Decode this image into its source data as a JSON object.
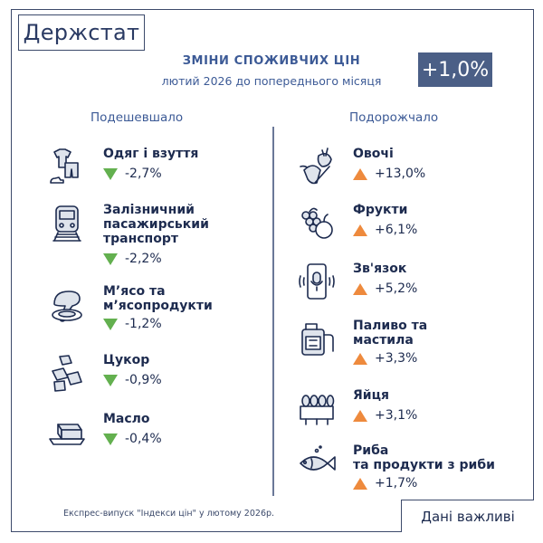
{
  "logo": "Держстат",
  "title": "ЗМІНИ СПОЖИВЧИХ ЦІН",
  "subtitle": "лютий 2026 до попереднього місяця",
  "total": "+1,0%",
  "left_heading": "Подешевшало",
  "right_heading": "Подорожчало",
  "cheaper": [
    {
      "name_lines": [
        "Одяг і взуття"
      ],
      "value": "-2,7%",
      "icon": "clothing-icon"
    },
    {
      "name_lines": [
        "Залізничний",
        "пасажирський",
        "транспорт"
      ],
      "value": "-2,2%",
      "icon": "train-icon"
    },
    {
      "name_lines": [
        "М’ясо та",
        "м’ясопродукти"
      ],
      "value": "-1,2%",
      "icon": "meat-icon"
    },
    {
      "name_lines": [
        "Цукор"
      ],
      "value": "-0,9%",
      "icon": "sugar-cubes-icon"
    },
    {
      "name_lines": [
        "Масло"
      ],
      "value": "-0,4%",
      "icon": "butter-icon"
    }
  ],
  "pricier": [
    {
      "name_lines": [
        "Овочі"
      ],
      "value": "+13,0%",
      "icon": "vegetables-icon"
    },
    {
      "name_lines": [
        "Фрукти"
      ],
      "value": "+6,1%",
      "icon": "fruit-icon"
    },
    {
      "name_lines": [
        "Зв'язок"
      ],
      "value": "+5,2%",
      "icon": "phone-icon"
    },
    {
      "name_lines": [
        "Паливо та",
        "мастила"
      ],
      "value": "+3,3%",
      "icon": "fuel-can-icon"
    },
    {
      "name_lines": [
        "Яйця"
      ],
      "value": "+3,1%",
      "icon": "eggs-icon"
    },
    {
      "name_lines": [
        "Риба",
        "та продукти з риби"
      ],
      "value": "+1,7%",
      "icon": "fish-icon"
    }
  ],
  "footnote": "Експрес-випуск \"Індекси цін\" у лютому 2026р.",
  "important": "Дані важливі",
  "colors": {
    "down": "#63b04f",
    "up": "#ee8a3d",
    "badge": "#4b5f86",
    "accent": "#3c5a96"
  }
}
